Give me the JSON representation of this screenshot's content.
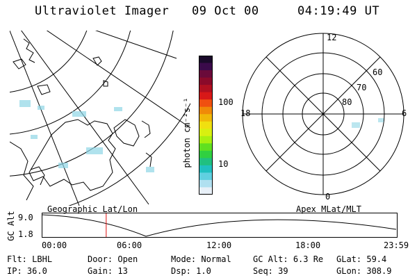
{
  "header": {
    "instrument": "Ultraviolet Imager",
    "date": "09 Oct 00",
    "time": "04:19:49 UT"
  },
  "colorbar": {
    "label": "photon cm⁻²s⁻¹",
    "tick_labels": [
      "100",
      "10"
    ],
    "colors": [
      "#1a0a2a",
      "#3a0a4a",
      "#6a0a3a",
      "#8a0a2a",
      "#b01020",
      "#d81818",
      "#f05010",
      "#f08a08",
      "#f0b808",
      "#f0e010",
      "#d8f010",
      "#a8f010",
      "#60e020",
      "#30d040",
      "#20c080",
      "#20c0c0",
      "#60d0e0",
      "#b0e0f0",
      "#e8f0f8"
    ]
  },
  "polar_grid": {
    "mlt_labels": {
      "top": "12",
      "bottom": "0",
      "left": "18",
      "right": "6"
    },
    "lat_labels": [
      "60",
      "70",
      "80"
    ]
  },
  "panel_labels": {
    "geo": "Geographic Lat/Lon",
    "apex": "Apex MLat/MLT"
  },
  "orbit_plot": {
    "ylabel": "GC Alt",
    "ytick_top": "9.0",
    "ytick_bottom": "1.8",
    "xticks": [
      "00:00",
      "06:00",
      "12:00",
      "18:00",
      "23:59"
    ],
    "current_time_fraction": 0.18,
    "marker_color": "#e01010"
  },
  "info": [
    {
      "label": "Flt:",
      "value": "LBHL"
    },
    {
      "label": "Door:",
      "value": "Open"
    },
    {
      "label": "Mode:",
      "value": "Normal"
    },
    {
      "label": "GC Alt:",
      "value": "6.3 Re"
    },
    {
      "label": "GLat:",
      "value": "59.4"
    },
    {
      "label": "IP:",
      "value": "36.0"
    },
    {
      "label": "Gain:",
      "value": "13"
    },
    {
      "label": "Dsp:",
      "value": "1.0"
    },
    {
      "label": "Seq:",
      "value": "39"
    },
    {
      "label": "GLon:",
      "value": "308.9"
    }
  ]
}
